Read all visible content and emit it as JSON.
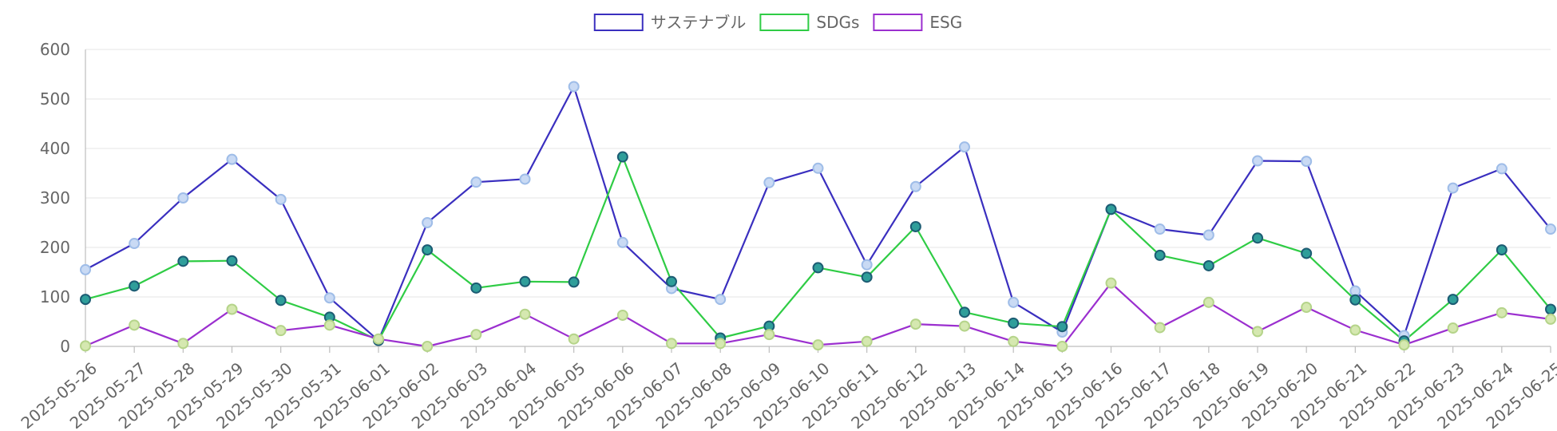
{
  "chart_data": {
    "type": "line",
    "title": "",
    "xlabel": "",
    "ylabel": "",
    "ylim": [
      0,
      600
    ],
    "yticks": [
      0,
      100,
      200,
      300,
      400,
      500,
      600
    ],
    "grid": true,
    "legend_position": "top-center",
    "categories": [
      "2025-05-26",
      "2025-05-27",
      "2025-05-28",
      "2025-05-29",
      "2025-05-30",
      "2025-05-31",
      "2025-06-01",
      "2025-06-02",
      "2025-06-03",
      "2025-06-04",
      "2025-06-05",
      "2025-06-06",
      "2025-06-07",
      "2025-06-08",
      "2025-06-09",
      "2025-06-10",
      "2025-06-11",
      "2025-06-12",
      "2025-06-13",
      "2025-06-14",
      "2025-06-15",
      "2025-06-16",
      "2025-06-17",
      "2025-06-18",
      "2025-06-19",
      "2025-06-20",
      "2025-06-21",
      "2025-06-22",
      "2025-06-23",
      "2025-06-24",
      "2025-06-25"
    ],
    "series": [
      {
        "name": "サステナブル",
        "color": "#3a2fbf",
        "marker_fill": "#c9daf4",
        "marker_stroke": "#9fbde8",
        "values": [
          155,
          208,
          300,
          378,
          297,
          98,
          12,
          250,
          332,
          338,
          525,
          210,
          117,
          95,
          331,
          360,
          165,
          323,
          403,
          89,
          29,
          277,
          237,
          225,
          375,
          374,
          112,
          22,
          320,
          359,
          237
        ]
      },
      {
        "name": "SDGs",
        "color": "#2fcc45",
        "marker_fill": "#2f9e9a",
        "marker_stroke": "#1c5c73",
        "values": [
          95,
          122,
          172,
          173,
          93,
          59,
          12,
          195,
          118,
          131,
          130,
          383,
          131,
          17,
          41,
          159,
          140,
          242,
          69,
          47,
          40,
          277,
          184,
          163,
          219,
          188,
          94,
          11,
          95,
          195,
          75
        ]
      },
      {
        "name": "ESG",
        "color": "#9b2fcf",
        "marker_fill": "#d5e8b0",
        "marker_stroke": "#b5d48a",
        "values": [
          1,
          43,
          6,
          75,
          32,
          43,
          15,
          0,
          24,
          65,
          15,
          63,
          6,
          6,
          24,
          3,
          10,
          45,
          41,
          10,
          0,
          128,
          38,
          89,
          30,
          79,
          33,
          3,
          37,
          68,
          55
        ]
      }
    ]
  }
}
